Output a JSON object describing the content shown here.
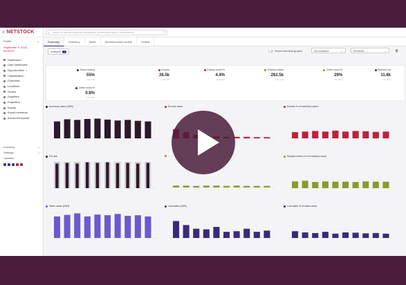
{
  "app": {
    "logo": "NETSTOCK",
    "menu_icon": "hamburger-icon"
  },
  "sidebar": {
    "profile_label": "Profile",
    "date_line1": "September 9, 2024,",
    "date_line2": "00:00:24",
    "items": [
      {
        "label": "Dashboard"
      },
      {
        "label": "User dashboard"
      },
      {
        "label": "Opportunities",
        "alert": "•"
      },
      {
        "label": "Classification"
      },
      {
        "label": "Forecasts"
      },
      {
        "label": "Locations"
      },
      {
        "label": "Orders"
      },
      {
        "label": "Suppliers"
      },
      {
        "label": "Projection"
      },
      {
        "label": "Inquiry"
      },
      {
        "label": "Export inventory"
      },
      {
        "label": "Advanced reports"
      }
    ],
    "bottom": [
      {
        "label": "Learning"
      },
      {
        "label": "Settings"
      },
      {
        "label": "Updates"
      }
    ],
    "social_icons": [
      "facebook-icon",
      "linkedin-icon",
      "twitter-icon",
      "youtube-icon",
      "instagram-icon"
    ]
  },
  "search": {
    "placeholder": "Search for specific inventory, transactions, performance reports, classifications"
  },
  "tabs": [
    {
      "label": "Summary",
      "active": true
    },
    {
      "label": "Inventory"
    },
    {
      "label": "Sales"
    },
    {
      "label": "Recommended orders"
    },
    {
      "label": "Orders"
    }
  ],
  "filters": {
    "analysis_label": "Analysis",
    "analysis_count": "4",
    "toggle_label": "Show historical graphs",
    "location_label": "All locations",
    "items_label": "All items"
  },
  "kpis": [
    {
      "label": "Stock holding",
      "value": "55",
      "unit": "%",
      "sub": "Last week",
      "color": "#3a2a6a"
    },
    {
      "label": "Excess",
      "value": "26.5",
      "unit": "k",
      "sub": "Last week",
      "color": "#c0203a"
    },
    {
      "label": "Excess count %",
      "value": "4.4",
      "unit": "%",
      "sub": "Last week",
      "color": "#c0203a"
    },
    {
      "label": "Surplus orders",
      "value": "262.5",
      "unit": "k",
      "sub": "Last week",
      "color": "#8a9a2a"
    },
    {
      "label": "Order count %",
      "value": "29",
      "unit": "%",
      "sub": "Last week",
      "color": "#8a9a2a"
    },
    {
      "label": "Stocked out",
      "value": "11.8",
      "unit": "k",
      "sub": "Last week",
      "color": "#3a2a6a"
    },
    {
      "label": "Order count %",
      "value": "0.8",
      "unit": "%",
      "sub": "Last week",
      "color": "#3a2a6a"
    }
  ],
  "charts": [
    {
      "title": "Inventory value (ZAR)",
      "color": "#2a1a2a",
      "values": [
        55,
        62,
        60,
        63,
        64,
        61,
        58,
        60,
        57,
        55
      ]
    },
    {
      "title": "Excess value",
      "color": "#c0203a",
      "values": [
        30,
        20,
        12,
        8,
        6,
        5,
        5,
        5,
        4,
        4
      ]
    },
    {
      "title": "Excess % of inventory value",
      "color": "#c0203a",
      "values": [
        20,
        22,
        24,
        22,
        25,
        22,
        24,
        23,
        21,
        22
      ]
    },
    {
      "title": "Fill rate",
      "color": "#2a1a2a",
      "values": [
        80,
        82,
        80,
        84,
        82,
        84,
        81,
        82,
        80,
        82
      ]
    },
    {
      "title": "",
      "color": "#8a9a2a",
      "values": [
        6,
        6,
        5,
        6,
        6,
        5,
        6,
        5,
        5,
        5
      ]
    },
    {
      "title": "Surplus orders % of inventory value",
      "color": "#8a9a2a",
      "values": [
        22,
        24,
        20,
        22,
        21,
        21,
        20,
        22,
        21,
        21
      ]
    },
    {
      "title": "Sales value (ZAR)",
      "color": "#6a5ad0",
      "values": [
        70,
        75,
        80,
        70,
        76,
        74,
        78,
        72,
        74,
        70
      ]
    },
    {
      "title": "Lost sales (ZAR)",
      "color": "#3a2a7a",
      "values": [
        55,
        42,
        30,
        28,
        36,
        20,
        22,
        30,
        20,
        24
      ]
    },
    {
      "title": "Lost sales % of sales value",
      "color": "#3a2a7a",
      "values": [
        22,
        18,
        16,
        20,
        14,
        18,
        17,
        15,
        16,
        14
      ]
    }
  ],
  "video": {
    "play_icon": "play-icon"
  }
}
